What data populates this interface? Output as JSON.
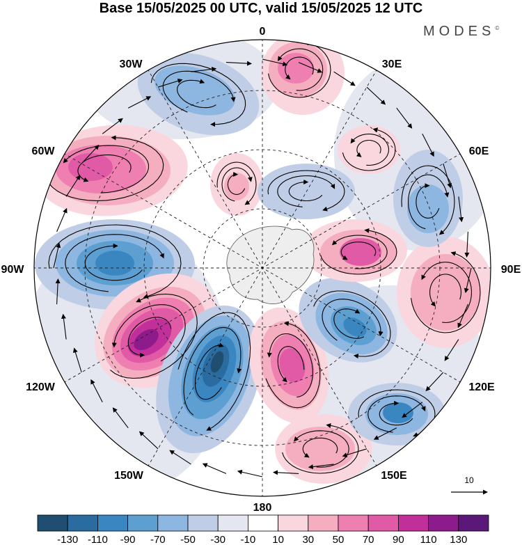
{
  "title": "Base 15/05/2025 00 UTC, valid 15/05/2025 12 UTC",
  "brand": "MODES",
  "brand_mark": "©",
  "map": {
    "projection": "south-polar-stereographic",
    "longitude_labels": {
      "top": "0",
      "upper_right": "30E",
      "right_upper": "60E",
      "right": "90E",
      "right_lower": "120E",
      "lower_right": "150E",
      "bottom": "180",
      "lower_left": "150W",
      "left_lower": "120W",
      "left": "90W",
      "left_upper": "60W",
      "upper_left": "30W"
    },
    "reference_vector_label": "10"
  },
  "colorbar": {
    "labels": [
      "-130",
      "-110",
      "-90",
      "-70",
      "-50",
      "-30",
      "-10",
      "10",
      "30",
      "50",
      "70",
      "90",
      "110",
      "130"
    ],
    "colors": [
      "#1f4e70",
      "#2b6ca0",
      "#3a86c0",
      "#5d9fd0",
      "#8db6e0",
      "#bfcde6",
      "#e4e6f0",
      "#ffffff",
      "#fad7de",
      "#f4aec0",
      "#ee7fb0",
      "#e15aa6",
      "#c02f9a",
      "#8e1b8c",
      "#5a1878"
    ]
  }
}
